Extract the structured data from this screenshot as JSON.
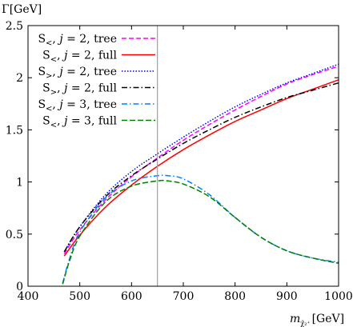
{
  "chart_data": {
    "type": "line",
    "ylabel": "Γ[GeV]",
    "xlabel": {
      "main": "m",
      "sub": "χ̃₂⁺",
      "unit": "[GeV]"
    },
    "xlim": [
      400,
      1000
    ],
    "ylim": [
      0,
      2.5
    ],
    "xticks": [
      400,
      500,
      600,
      700,
      800,
      900,
      1000
    ],
    "yticks": [
      0,
      0.5,
      1,
      1.5,
      2,
      2.5
    ],
    "xtick_labels": [
      "400",
      "500",
      "600",
      "700",
      "800",
      "900",
      "1000"
    ],
    "ytick_labels": [
      "0",
      "0.5",
      "1",
      "1.5",
      "2",
      "2.5"
    ],
    "grid": false,
    "legend_position": "top-left",
    "vertical_line_x": 650,
    "series": [
      {
        "name": "S<, j = 2, tree",
        "legend": {
          "s": "S",
          "sub": "<",
          "mid": ", ",
          "j": "j",
          "rest": " = 2, tree"
        },
        "color": "#ff00ff",
        "dash": "6,3",
        "x": [
          470,
          500,
          550,
          600,
          650,
          700,
          750,
          800,
          850,
          900,
          950,
          1000
        ],
        "y": [
          0.31,
          0.54,
          0.83,
          1.05,
          1.23,
          1.4,
          1.55,
          1.69,
          1.82,
          1.94,
          2.03,
          2.11
        ]
      },
      {
        "name": "S<, j = 2, full",
        "legend": {
          "s": "S",
          "sub": "<",
          "mid": ", ",
          "j": "j",
          "rest": " = 2, full"
        },
        "color": "#ff0000",
        "dash": "",
        "x": [
          470,
          500,
          550,
          600,
          650,
          700,
          750,
          800,
          850,
          900,
          950,
          1000
        ],
        "y": [
          0.29,
          0.49,
          0.76,
          0.97,
          1.15,
          1.31,
          1.45,
          1.58,
          1.69,
          1.8,
          1.89,
          1.98
        ]
      },
      {
        "name": "S>, j = 2, tree",
        "legend": {
          "s": "S",
          "sub": ">",
          "mid": ", ",
          "j": "j",
          "rest": " = 2, tree"
        },
        "color": "#0000ff",
        "dash": "1.5,2",
        "x": [
          470,
          500,
          550,
          600,
          650,
          700,
          750,
          800,
          850,
          900,
          950,
          1000
        ],
        "y": [
          0.33,
          0.57,
          0.88,
          1.1,
          1.27,
          1.43,
          1.58,
          1.72,
          1.84,
          1.95,
          2.04,
          2.13
        ]
      },
      {
        "name": "S>, j = 2, full",
        "legend": {
          "s": "S",
          "sub": ">",
          "mid": ", ",
          "j": "j",
          "rest": " = 2, full"
        },
        "color": "#000000",
        "dash": "7,3,1.5,3",
        "x": [
          470,
          500,
          550,
          600,
          650,
          700,
          750,
          800,
          850,
          900,
          950,
          1000
        ],
        "y": [
          0.33,
          0.57,
          0.86,
          1.06,
          1.22,
          1.37,
          1.5,
          1.62,
          1.72,
          1.81,
          1.88,
          1.95
        ]
      },
      {
        "name": "S<, j = 3, tree",
        "legend": {
          "s": "S",
          "sub": "<",
          "mid": ", ",
          "j": "j",
          "rest": " = 3, tree"
        },
        "color": "#0080ff",
        "dash": "7,3,1.5,3",
        "x": [
          467,
          480,
          500,
          550,
          600,
          650,
          670,
          700,
          750,
          800,
          850,
          900,
          950,
          1000
        ],
        "y": [
          0.03,
          0.26,
          0.52,
          0.85,
          1.01,
          1.06,
          1.06,
          1.03,
          0.88,
          0.66,
          0.47,
          0.34,
          0.27,
          0.23
        ]
      },
      {
        "name": "S<, j = 3, full",
        "legend": {
          "s": "S",
          "sub": "<",
          "mid": ", ",
          "j": "j",
          "rest": " = 3, full"
        },
        "color": "#008000",
        "dash": "7,3",
        "x": [
          467,
          480,
          500,
          550,
          600,
          650,
          670,
          700,
          750,
          800,
          850,
          900,
          950,
          1000
        ],
        "y": [
          0.02,
          0.24,
          0.48,
          0.81,
          0.96,
          1.01,
          1.01,
          0.98,
          0.86,
          0.66,
          0.47,
          0.34,
          0.27,
          0.22
        ]
      }
    ]
  }
}
